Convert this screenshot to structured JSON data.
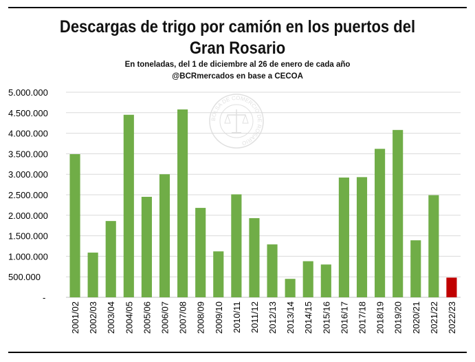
{
  "title_line1": "Descargas de trigo por camión en los puertos del",
  "title_line2": "Gran Rosario",
  "subtitle": "En toneladas, del 1 de diciembre al 26 de enero de cada año",
  "source": "@BCRmercados en base a CECOA",
  "watermark_text": "BOLSA DE COMERCIO DE ROSARIO",
  "colors": {
    "bar": "#70ad47",
    "highlight": "#c00000",
    "grid": "#d9d9d9"
  },
  "chart_data": {
    "type": "bar",
    "title": "Descargas de trigo por camión en los puertos del Gran Rosario",
    "subtitle": "En toneladas, del 1 de diciembre al 26 de enero de cada año",
    "categories": [
      "2001/02",
      "2002/03",
      "2003/04",
      "2004/05",
      "2005/06",
      "2006/07",
      "2007/08",
      "2008/09",
      "2009/10",
      "2010/11",
      "2011/12",
      "2012/13",
      "2013/14",
      "2014/15",
      "2015/16",
      "2016/17",
      "2017/18",
      "2018/19",
      "2019/20",
      "2020/21",
      "2021/22",
      "2022/23"
    ],
    "values": [
      3490000,
      1090000,
      1860000,
      4450000,
      2450000,
      3000000,
      4580000,
      2180000,
      1120000,
      2510000,
      1930000,
      1290000,
      450000,
      880000,
      800000,
      2920000,
      2930000,
      3620000,
      4080000,
      1390000,
      2490000,
      480000
    ],
    "highlight_index": 21,
    "ylim": [
      0,
      5000000
    ],
    "yticks": [
      0,
      500000,
      1000000,
      1500000,
      2000000,
      2500000,
      3000000,
      3500000,
      4000000,
      4500000,
      5000000
    ],
    "ytick_labels": [
      "-",
      "500.000",
      "1.000.000",
      "1.500.000",
      "2.000.000",
      "2.500.000",
      "3.000.000",
      "3.500.000",
      "4.000.000",
      "4.500.000",
      "5.000.000"
    ],
    "grid": true,
    "xlabel": "",
    "ylabel": ""
  }
}
